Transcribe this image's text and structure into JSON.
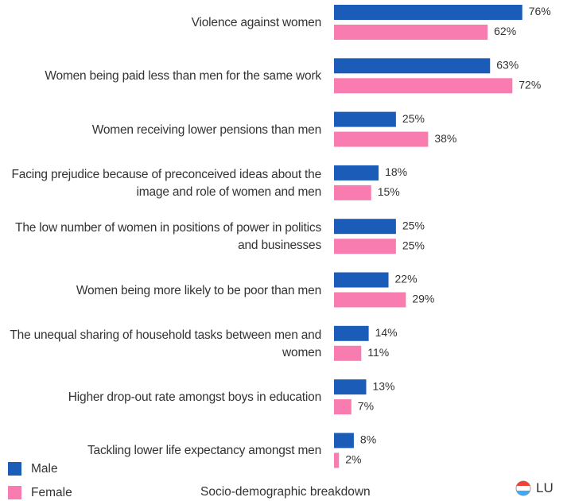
{
  "chart_data": {
    "type": "bar",
    "orientation": "horizontal",
    "categories": [
      "Violence against women",
      "Women being paid less than men for the same work",
      "Women receiving lower pensions than men",
      "Facing prejudice because of preconceived ideas about the image and role of women and men",
      "The low number of women in positions of power in politics and businesses",
      "Women being more likely to be poor than men",
      "The unequal sharing of household tasks between men and women",
      "Higher drop-out rate amongst boys in education",
      "Tackling lower life expectancy amongst men"
    ],
    "series": [
      {
        "name": "Male",
        "color": "#1a5cb8",
        "values": [
          76,
          63,
          25,
          18,
          25,
          22,
          14,
          13,
          8
        ],
        "value_labels": [
          "76%",
          "63%",
          "25%",
          "18%",
          "25%",
          "22%",
          "14%",
          "13%",
          "8%"
        ]
      },
      {
        "name": "Female",
        "color": "#f97cb0",
        "values": [
          62,
          72,
          38,
          15,
          25,
          29,
          11,
          7,
          2
        ],
        "value_labels": [
          "62%",
          "72%",
          "38%",
          "15%",
          "25%",
          "29%",
          "11%",
          "7%",
          "2%"
        ]
      }
    ],
    "footer": "Socio-demographic breakdown",
    "country": "LU"
  }
}
